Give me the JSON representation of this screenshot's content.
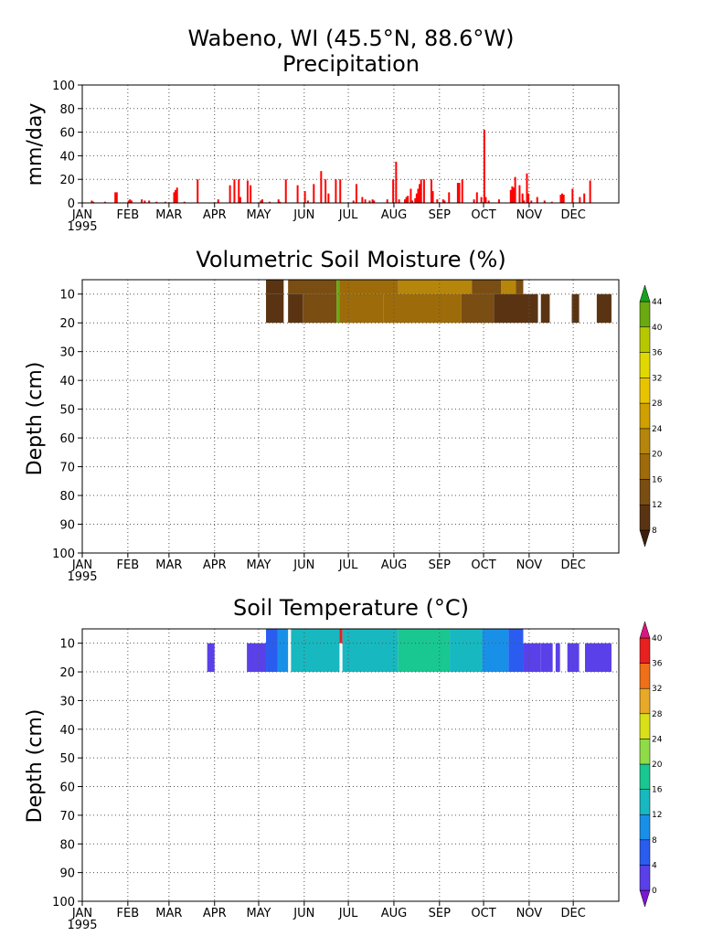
{
  "page": {
    "title_line1": "Wabeno, WI  (45.5°N, 88.6°W)"
  },
  "months": [
    "JAN",
    "FEB",
    "MAR",
    "APR",
    "MAY",
    "JUN",
    "JUL",
    "AUG",
    "SEP",
    "OCT",
    "NOV",
    "DEC"
  ],
  "year_label": "1995",
  "chart_data": [
    {
      "type": "bar",
      "title": "Precipitation",
      "xlabel": "",
      "ylabel": "mm/day",
      "ylim": [
        0,
        100
      ],
      "yticks": [
        0,
        20,
        40,
        60,
        80,
        100
      ],
      "grid": true,
      "bar_color": "#ff0000",
      "x_unit": "day of year 1995",
      "x": [
        6,
        7,
        15,
        22,
        23,
        31,
        32,
        33,
        40,
        42,
        45,
        50,
        56,
        62,
        63,
        64,
        69,
        78,
        92,
        100,
        103,
        106,
        107,
        112,
        114,
        121,
        122,
        127,
        133,
        134,
        138,
        146,
        151,
        153,
        157,
        162,
        165,
        167,
        172,
        175,
        184,
        186,
        190,
        192,
        195,
        197,
        198,
        207,
        211,
        213,
        215,
        219,
        220,
        221,
        223,
        224,
        226,
        227,
        228,
        229,
        230,
        232,
        237,
        238,
        241,
        245,
        246,
        249,
        255,
        256,
        258,
        266,
        268,
        271,
        273,
        274,
        276,
        283,
        291,
        292,
        293,
        294,
        297,
        299,
        300,
        302,
        303,
        305,
        309,
        314,
        319,
        325,
        326,
        327,
        333,
        338,
        341,
        345
      ],
      "values": [
        2,
        1,
        1,
        9,
        9,
        2,
        3,
        2,
        3,
        2,
        2,
        1,
        1,
        9,
        11,
        13,
        1,
        20,
        3,
        15,
        20,
        20,
        5,
        19,
        15,
        2,
        3,
        1,
        3,
        1,
        20,
        15,
        10,
        2,
        16,
        27,
        20,
        8,
        20,
        20,
        2,
        16,
        5,
        3,
        2,
        3,
        2,
        3,
        20,
        35,
        3,
        3,
        5,
        6,
        12,
        2,
        4,
        8,
        12,
        16,
        20,
        20,
        20,
        10,
        3,
        3,
        2,
        9,
        17,
        17,
        20,
        3,
        9,
        5,
        62,
        5,
        2,
        3,
        11,
        14,
        13,
        22,
        15,
        8,
        2,
        25,
        8,
        2,
        5,
        2,
        1,
        7,
        8,
        7,
        12,
        5,
        8,
        19
      ]
    },
    {
      "type": "heatmap",
      "title": "Volumetric Soil Moisture (%)",
      "xlabel": "",
      "ylabel": "Depth (cm)",
      "ylim": [
        100,
        5
      ],
      "yticks": [
        10,
        20,
        30,
        40,
        50,
        60,
        70,
        80,
        90,
        100
      ],
      "grid": true,
      "colorbar": {
        "levels": [
          8,
          12,
          16,
          20,
          24,
          28,
          32,
          36,
          40,
          44
        ],
        "colors": [
          "#3c200b",
          "#5a3412",
          "#7a4d12",
          "#9d6b09",
          "#b5860b",
          "#d0a000",
          "#e8c400",
          "#e0d800",
          "#b8c800",
          "#6aaa10",
          "#18a020"
        ]
      },
      "x_unit": "day of year 1995",
      "y_unit": "cm",
      "cells": [
        {
          "x": [
            125,
            137
          ],
          "y": [
            5,
            10
          ],
          "v": 10
        },
        {
          "x": [
            140,
            173
          ],
          "y": [
            5,
            10
          ],
          "v": 13
        },
        {
          "x": [
            173,
            175
          ],
          "y": [
            5,
            20
          ],
          "v": 42
        },
        {
          "x": [
            175,
            215
          ],
          "y": [
            5,
            10
          ],
          "v": 17
        },
        {
          "x": [
            215,
            265
          ],
          "y": [
            5,
            10
          ],
          "v": 20
        },
        {
          "x": [
            265,
            285
          ],
          "y": [
            5,
            10
          ],
          "v": 14
        },
        {
          "x": [
            285,
            295
          ],
          "y": [
            5,
            10
          ],
          "v": 22
        },
        {
          "x": [
            295,
            300
          ],
          "y": [
            5,
            10
          ],
          "v": 12
        },
        {
          "x": [
            125,
            137
          ],
          "y": [
            10,
            20
          ],
          "v": 8
        },
        {
          "x": [
            140,
            150
          ],
          "y": [
            10,
            20
          ],
          "v": 10
        },
        {
          "x": [
            150,
            173
          ],
          "y": [
            10,
            20
          ],
          "v": 13
        },
        {
          "x": [
            175,
            205
          ],
          "y": [
            10,
            20
          ],
          "v": 16
        },
        {
          "x": [
            205,
            258
          ],
          "y": [
            10,
            20
          ],
          "v": 19
        },
        {
          "x": [
            258,
            280
          ],
          "y": [
            10,
            20
          ],
          "v": 14
        },
        {
          "x": [
            280,
            310
          ],
          "y": [
            10,
            20
          ],
          "v": 11
        },
        {
          "x": [
            312,
            318
          ],
          "y": [
            10,
            20
          ],
          "v": 9
        },
        {
          "x": [
            333,
            338
          ],
          "y": [
            10,
            20
          ],
          "v": 8
        },
        {
          "x": [
            350,
            360
          ],
          "y": [
            10,
            20
          ],
          "v": 8
        }
      ]
    },
    {
      "type": "heatmap",
      "title": "Soil Temperature (°C)",
      "xlabel": "",
      "ylabel": "Depth (cm)",
      "ylim": [
        100,
        5
      ],
      "yticks": [
        10,
        20,
        30,
        40,
        50,
        60,
        70,
        80,
        90,
        100
      ],
      "grid": true,
      "colorbar": {
        "levels": [
          0,
          4,
          8,
          12,
          16,
          20,
          24,
          28,
          32,
          36,
          40
        ],
        "colors": [
          "#7a18d0",
          "#5a40e8",
          "#2a5cf0",
          "#1890e8",
          "#18b8c0",
          "#18c890",
          "#90dc48",
          "#d8e018",
          "#e8a828",
          "#ee7018",
          "#e82020",
          "#d81880"
        ]
      },
      "x_unit": "day of year 1995",
      "y_unit": "cm",
      "cells": [
        {
          "x": [
            85,
            90
          ],
          "y": [
            10,
            20
          ],
          "v": 1
        },
        {
          "x": [
            112,
            125
          ],
          "y": [
            10,
            20
          ],
          "v": 1
        },
        {
          "x": [
            125,
            133
          ],
          "y": [
            5,
            20
          ],
          "v": 4
        },
        {
          "x": [
            133,
            140
          ],
          "y": [
            5,
            20
          ],
          "v": 8
        },
        {
          "x": [
            142,
            175
          ],
          "y": [
            5,
            20
          ],
          "v": 13
        },
        {
          "x": [
            175,
            177
          ],
          "y": [
            5,
            10
          ],
          "v": 38
        },
        {
          "x": [
            177,
            215
          ],
          "y": [
            5,
            20
          ],
          "v": 15
        },
        {
          "x": [
            215,
            250
          ],
          "y": [
            5,
            20
          ],
          "v": 17
        },
        {
          "x": [
            250,
            272
          ],
          "y": [
            5,
            20
          ],
          "v": 13
        },
        {
          "x": [
            272,
            290
          ],
          "y": [
            5,
            20
          ],
          "v": 10
        },
        {
          "x": [
            290,
            300
          ],
          "y": [
            5,
            20
          ],
          "v": 6
        },
        {
          "x": [
            300,
            312
          ],
          "y": [
            10,
            20
          ],
          "v": 2
        },
        {
          "x": [
            312,
            320
          ],
          "y": [
            10,
            20
          ],
          "v": 1
        },
        {
          "x": [
            322,
            325
          ],
          "y": [
            10,
            20
          ],
          "v": 1
        },
        {
          "x": [
            330,
            338
          ],
          "y": [
            10,
            20
          ],
          "v": 1
        },
        {
          "x": [
            342,
            360
          ],
          "y": [
            10,
            20
          ],
          "v": 1
        }
      ]
    }
  ]
}
